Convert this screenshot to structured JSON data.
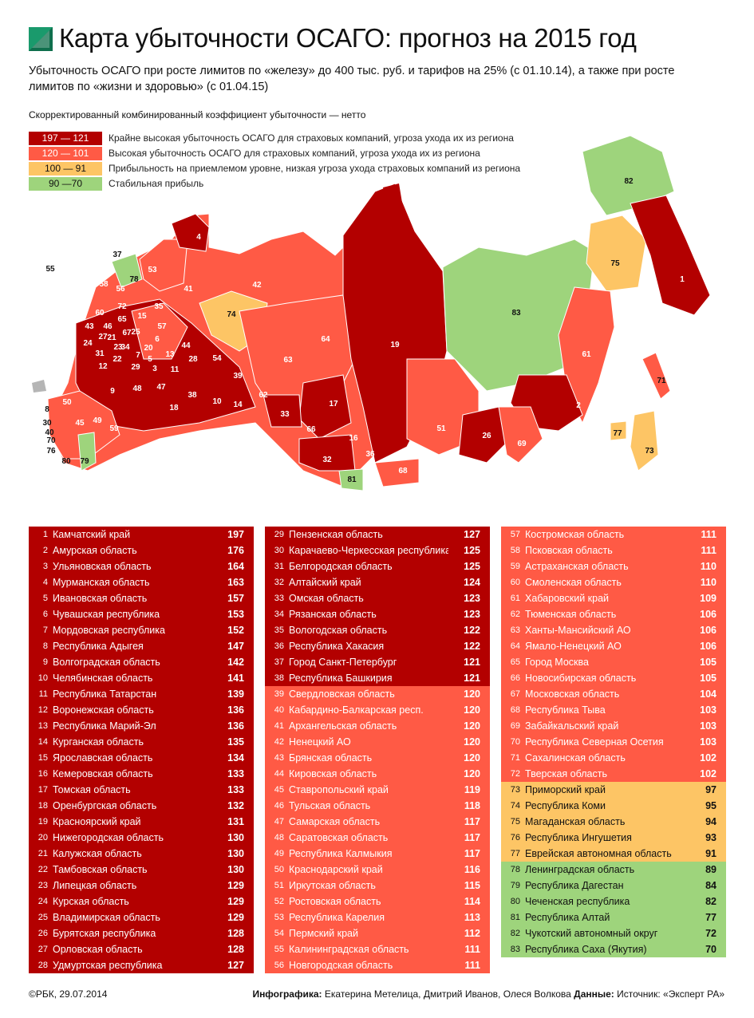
{
  "header": {
    "title": "Карта убыточности ОСАГО: прогноз на 2015 год",
    "subtitle": "Убыточность ОСАГО при росте лимитов по «железу» до 400 тыс. руб. и тарифов на 25% (с 01.10.14), а также при росте лимитов по «жизни и здоровью» (с 01.04.15)"
  },
  "colors": {
    "dark_red": "#B30000",
    "red": "#FF5A45",
    "yellow": "#FDC565",
    "green": "#9ED47C",
    "gray": "#B5B5B5"
  },
  "legend": {
    "heading": "Скорректированный комбинированный коэффициент убыточности — нетто",
    "items": [
      {
        "range": "197 — 121",
        "text": "Крайне высокая убыточность ОСАГО для страховых компаний, угроза ухода их из региона",
        "color": "#B30000",
        "text_color": "#ffffff"
      },
      {
        "range": "120 — 101",
        "text": "Высокая убыточность ОСАГО для страховых компаний, угроза ухода их из региона",
        "color": "#FF5A45",
        "text_color": "#ffffff"
      },
      {
        "range": "100 — 91",
        "text": "Прибыльность на приемлемом уровне, низкая угроза ухода страховых компаний из региона",
        "color": "#FDC565",
        "text_color": "#111111"
      },
      {
        "range": "90 —70",
        "text": "Стабильная прибыль",
        "color": "#9ED47C",
        "text_color": "#111111"
      }
    ]
  },
  "chart_data": {
    "type": "table",
    "title": "Карта убыточности ОСАГО: прогноз на 2015 год",
    "metric": "Скорректированный комбинированный коэффициент убыточности — нетто",
    "rows": [
      {
        "rank": "1",
        "region": "Камчатский край",
        "value": 197
      },
      {
        "rank": "2",
        "region": "Амурская область",
        "value": 176
      },
      {
        "rank": "3",
        "region": "Ульяновская область",
        "value": 164
      },
      {
        "rank": "4",
        "region": "Мурманская область",
        "value": 163
      },
      {
        "rank": "5",
        "region": "Ивановская область",
        "value": 157
      },
      {
        "rank": "6",
        "region": "Чувашская республика",
        "value": 153
      },
      {
        "rank": "7",
        "region": "Мордовская республика",
        "value": 152
      },
      {
        "rank": "8",
        "region": "Республика Адыгея",
        "value": 147
      },
      {
        "rank": "9",
        "region": "Волгоградская область",
        "value": 142
      },
      {
        "rank": "10",
        "region": "Челябинская область",
        "value": 141
      },
      {
        "rank": "11",
        "region": "Республика Татарстан",
        "value": 139
      },
      {
        "rank": "12",
        "region": "Воронежская область",
        "value": 136
      },
      {
        "rank": "13",
        "region": "Республика Марий-Эл",
        "value": 136
      },
      {
        "rank": "14",
        "region": "Курганская область",
        "value": 135
      },
      {
        "rank": "15",
        "region": "Ярославская область",
        "value": 134
      },
      {
        "rank": "16",
        "region": "Кемеровская область",
        "value": 133
      },
      {
        "rank": "17",
        "region": "Томская область",
        "value": 133
      },
      {
        "rank": "18",
        "region": "Оренбургская область",
        "value": 132
      },
      {
        "rank": "19",
        "region": "Красноярский край",
        "value": 131
      },
      {
        "rank": "20",
        "region": "Нижегородская область",
        "value": 130
      },
      {
        "rank": "21",
        "region": "Калужская область",
        "value": 130
      },
      {
        "rank": "22",
        "region": "Тамбовская область",
        "value": 130
      },
      {
        "rank": "23",
        "region": "Липецкая область",
        "value": 129
      },
      {
        "rank": "24",
        "region": "Курская область",
        "value": 129
      },
      {
        "rank": "25",
        "region": "Владимирская область",
        "value": 129
      },
      {
        "rank": "26",
        "region": "Бурятская республика",
        "value": 128
      },
      {
        "rank": "27",
        "region": "Орловская область",
        "value": 128
      },
      {
        "rank": "28",
        "region": "Удмуртская республика",
        "value": 127
      },
      {
        "rank": "29",
        "region": "Пензенская область",
        "value": 127
      },
      {
        "rank": "30",
        "region": "Карачаево-Черкесская республика",
        "value": 125
      },
      {
        "rank": "31",
        "region": "Белгородская область",
        "value": 125
      },
      {
        "rank": "32",
        "region": "Алтайский край",
        "value": 124
      },
      {
        "rank": "33",
        "region": "Омская область",
        "value": 123
      },
      {
        "rank": "34",
        "region": "Рязанская область",
        "value": 123
      },
      {
        "rank": "35",
        "region": "Вологодская область",
        "value": 122
      },
      {
        "rank": "36",
        "region": "Республика Хакасия",
        "value": 122
      },
      {
        "rank": "37",
        "region": "Город Санкт-Петербург",
        "value": 121
      },
      {
        "rank": "38",
        "region": "Республика Башкирия",
        "value": 121
      },
      {
        "rank": "39",
        "region": "Свердловская область",
        "value": 120
      },
      {
        "rank": "40",
        "region": "Кабардино-Балкарская респ.",
        "value": 120
      },
      {
        "rank": "41",
        "region": "Архангельская область",
        "value": 120
      },
      {
        "rank": "42",
        "region": "Ненецкий АО",
        "value": 120
      },
      {
        "rank": "43",
        "region": "Брянская область",
        "value": 120
      },
      {
        "rank": "44",
        "region": "Кировская область",
        "value": 120
      },
      {
        "rank": "45",
        "region": "Ставропольский край",
        "value": 119
      },
      {
        "rank": "46",
        "region": "Тульская область",
        "value": 118
      },
      {
        "rank": "47",
        "region": "Самарская область",
        "value": 117
      },
      {
        "rank": "48",
        "region": "Саратовская область",
        "value": 117
      },
      {
        "rank": "49",
        "region": "Республика Калмыкия",
        "value": 117
      },
      {
        "rank": "50",
        "region": "Краснодарский край",
        "value": 116
      },
      {
        "rank": "51",
        "region": "Иркутская область",
        "value": 115
      },
      {
        "rank": "52",
        "region": "Ростовская область",
        "value": 114
      },
      {
        "rank": "53",
        "region": "Республика Карелия",
        "value": 113
      },
      {
        "rank": "54",
        "region": "Пермский край",
        "value": 112
      },
      {
        "rank": "55",
        "region": "Калининградская область",
        "value": 111
      },
      {
        "rank": "56",
        "region": "Новгородская область",
        "value": 111
      },
      {
        "rank": "57",
        "region": "Костромская область",
        "value": 111
      },
      {
        "rank": "58",
        "region": "Псковская область",
        "value": 111
      },
      {
        "rank": "59",
        "region": "Астраханская область",
        "value": 110
      },
      {
        "rank": "60",
        "region": "Смоленская область",
        "value": 110
      },
      {
        "rank": "61",
        "region": "Хабаровский край",
        "value": 109
      },
      {
        "rank": "62",
        "region": "Тюменская область",
        "value": 106
      },
      {
        "rank": "63",
        "region": "Ханты-Мансийский АО",
        "value": 106
      },
      {
        "rank": "64",
        "region": "Ямало-Ненецкий АО",
        "value": 106
      },
      {
        "rank": "65",
        "region": "Город Москва",
        "value": 105
      },
      {
        "rank": "66",
        "region": "Новосибирская область",
        "value": 105
      },
      {
        "rank": "67",
        "region": "Московская область",
        "value": 104
      },
      {
        "rank": "68",
        "region": "Республика Тыва",
        "value": 103
      },
      {
        "rank": "69",
        "region": "Забайкальский край",
        "value": 103
      },
      {
        "rank": "70",
        "region": "Республика Северная Осетия",
        "value": 103
      },
      {
        "rank": "71",
        "region": "Сахалинская область",
        "value": 102
      },
      {
        "rank": "72",
        "region": "Тверская область",
        "value": 102
      },
      {
        "rank": "73",
        "region": "Приморский край",
        "value": 97
      },
      {
        "rank": "74",
        "region": "Республика Коми",
        "value": 95
      },
      {
        "rank": "75",
        "region": "Магаданская область",
        "value": 94
      },
      {
        "rank": "76",
        "region": "Республика Ингушетия",
        "value": 93
      },
      {
        "rank": "77",
        "region": "Еврейская автономная область",
        "value": 91
      },
      {
        "rank": "78",
        "region": "Ленинградская область",
        "value": 89
      },
      {
        "rank": "79",
        "region": "Республика Дагестан",
        "value": 84
      },
      {
        "rank": "80",
        "region": "Чеченская республика",
        "value": 82
      },
      {
        "rank": "81",
        "region": "Республика Алтай",
        "value": 77
      },
      {
        "rank": "82",
        "region": "Чукотский автономный округ",
        "value": 72
      },
      {
        "rank": "83",
        "region": "Республика Саха (Якутия)",
        "value": 70
      }
    ]
  },
  "footer": {
    "credit": "©РБК, 29.07.2014",
    "infographics_label": "Инфографика:",
    "authors": "Екатерина Метелица, Дмитрий Иванов, Олеся Волкова",
    "data_label": "Данные:",
    "source": "Источник: «Эксперт РА»"
  }
}
